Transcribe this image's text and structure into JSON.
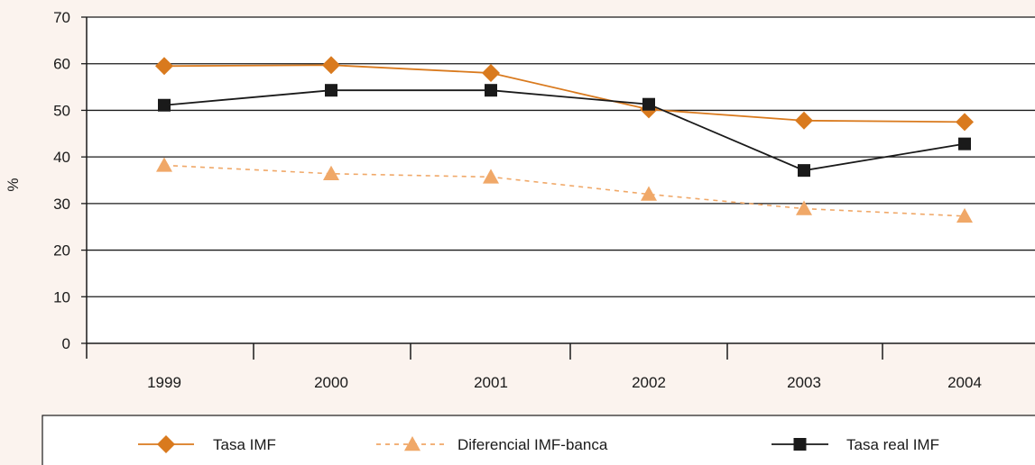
{
  "chart_data": {
    "type": "line",
    "ylabel": "%",
    "ylim": [
      0,
      70
    ],
    "y_ticks": [
      0,
      10,
      20,
      30,
      40,
      50,
      60,
      70
    ],
    "categories": [
      "1999",
      "2000",
      "2001",
      "2002",
      "2003",
      "2004"
    ],
    "grid": "horizontal",
    "legend_position": "bottom",
    "series": [
      {
        "name": "Tasa IMF",
        "values": [
          59.5,
          59.7,
          58.0,
          50.2,
          47.8,
          47.5
        ],
        "color": "#D97A1E",
        "marker": "diamond",
        "line_style": "solid"
      },
      {
        "name": "Diferencial IMF-banca",
        "values": [
          38.2,
          36.4,
          35.7,
          32.0,
          28.9,
          27.3
        ],
        "color": "#F0A868",
        "marker": "triangle",
        "line_style": "dashed"
      },
      {
        "name": "Tasa real IMF",
        "values": [
          51.1,
          54.3,
          54.3,
          51.3,
          37.1,
          42.8
        ],
        "color": "#1a1a1a",
        "marker": "square",
        "line_style": "solid"
      }
    ]
  }
}
